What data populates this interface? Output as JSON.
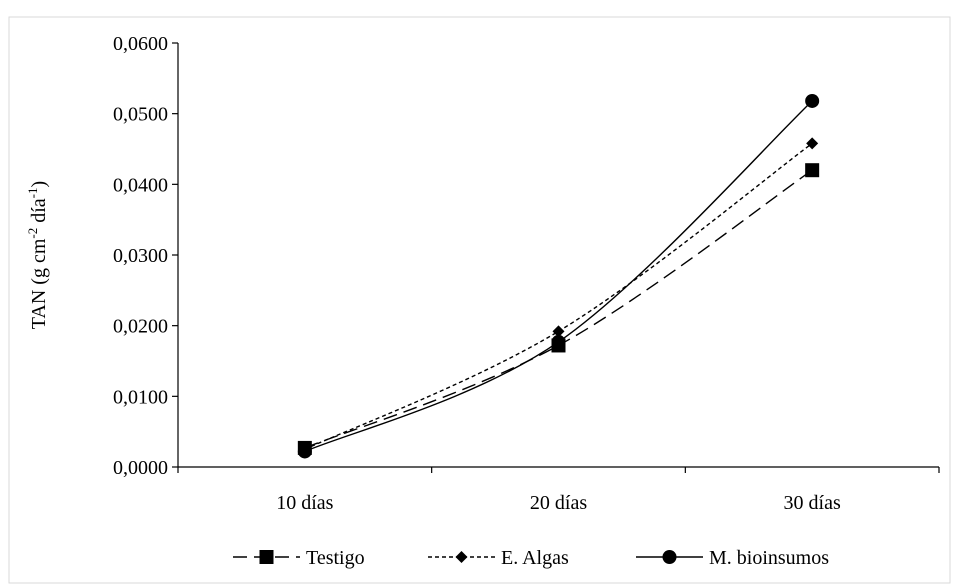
{
  "chart_data": {
    "type": "line",
    "categories": [
      "10 días",
      "20 días",
      "30 días"
    ],
    "series": [
      {
        "name": "Testigo",
        "values": [
          0.0027,
          0.0172,
          0.042
        ],
        "dash": "long-dash",
        "marker": "square"
      },
      {
        "name": "E. Algas",
        "values": [
          0.0025,
          0.0192,
          0.0458
        ],
        "dash": "short-dash",
        "marker": "diamond"
      },
      {
        "name": "M. bioinsumos",
        "values": [
          0.0022,
          0.0177,
          0.0518
        ],
        "dash": "solid",
        "marker": "circle"
      }
    ],
    "ylabel": {
      "main": "TAN (g cm",
      "exp1": "-2",
      "mid": " día",
      "exp2": "-1",
      "end": ")"
    },
    "ylim": [
      0,
      0.06
    ],
    "yticks": [
      "0,0000",
      "0,0100",
      "0,0200",
      "0,0300",
      "0,0400",
      "0,0500",
      "0,0600"
    ],
    "grid": false,
    "legend_position": "bottom",
    "line_color": "#000000"
  }
}
